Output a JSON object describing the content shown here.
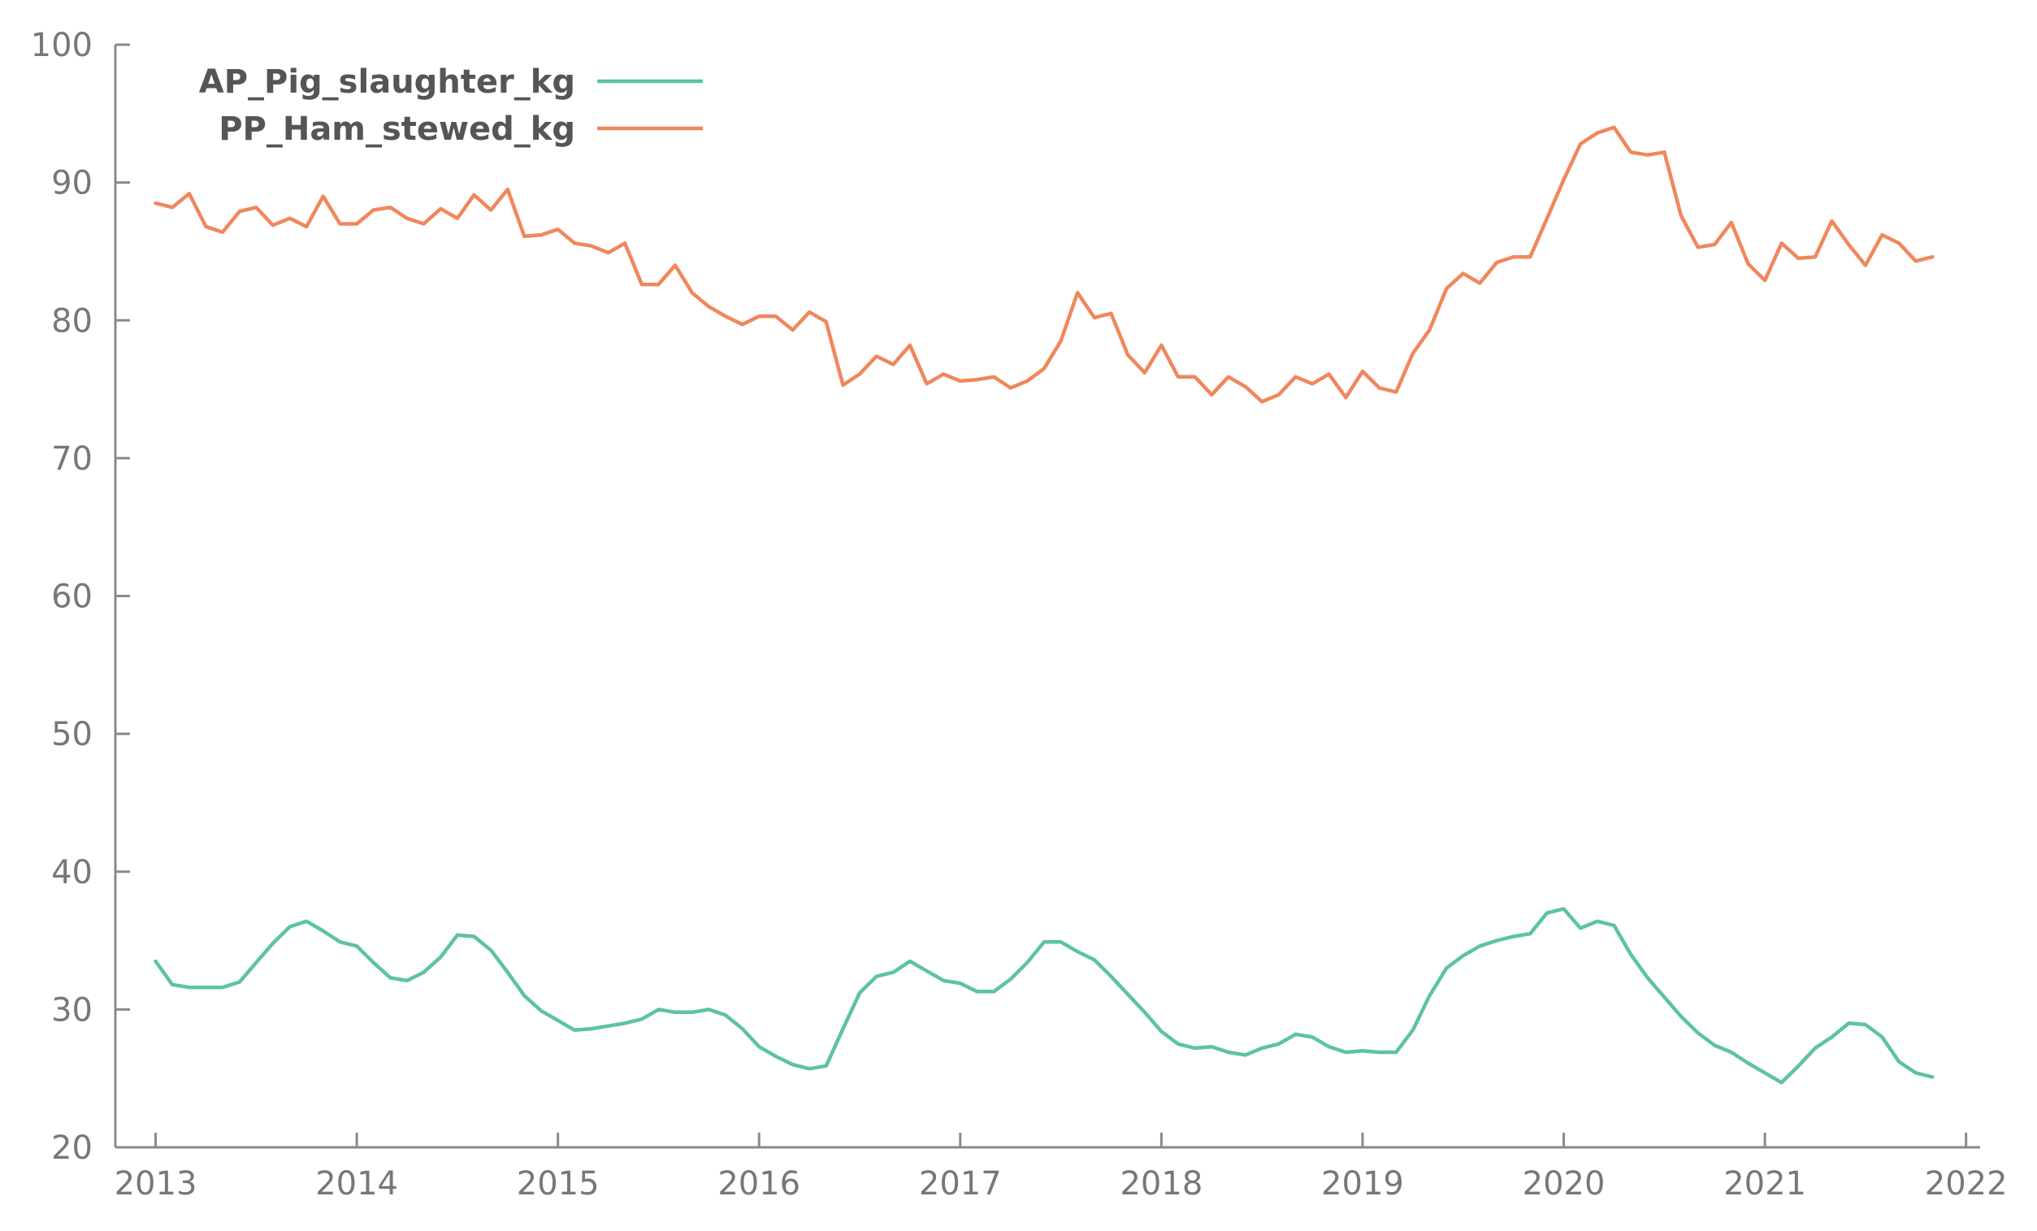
{
  "colors": {
    "background": "#ffffff",
    "axis": "#8a8a8a",
    "tick_text": "#777777",
    "legend_text": "#555555",
    "series": [
      "#5dc2a6",
      "#f0875c"
    ]
  },
  "chart_data": {
    "type": "line",
    "title": "",
    "xlabel": "",
    "ylabel": "",
    "xlim": [
      2012.8,
      2022.07
    ],
    "ylim": [
      20,
      100
    ],
    "x_ticks": [
      2013,
      2014,
      2015,
      2016,
      2017,
      2018,
      2019,
      2020,
      2021,
      2022
    ],
    "x_tick_labels": [
      "2013",
      "2014",
      "2015",
      "2016",
      "2017",
      "2018",
      "2019",
      "2020",
      "2021",
      "2022"
    ],
    "y_ticks": [
      20,
      30,
      40,
      50,
      60,
      70,
      80,
      90,
      100
    ],
    "y_tick_labels": [
      "20",
      "30",
      "40",
      "50",
      "60",
      "70",
      "80",
      "90",
      "100"
    ],
    "grid": false,
    "legend_position": "top-left",
    "series": [
      {
        "name": "AP_Pig_slaughter_kg",
        "color": "#5dc2a6",
        "x": [
          2013,
          2013.083,
          2013.167,
          2013.25,
          2013.333,
          2013.417,
          2013.5,
          2013.583,
          2013.667,
          2013.75,
          2013.833,
          2013.917,
          2014,
          2014.083,
          2014.167,
          2014.25,
          2014.333,
          2014.417,
          2014.5,
          2014.583,
          2014.667,
          2014.75,
          2014.833,
          2014.917,
          2015,
          2015.083,
          2015.167,
          2015.25,
          2015.333,
          2015.417,
          2015.5,
          2015.583,
          2015.667,
          2015.75,
          2015.833,
          2015.917,
          2016,
          2016.083,
          2016.167,
          2016.25,
          2016.333,
          2016.417,
          2016.5,
          2016.583,
          2016.667,
          2016.75,
          2016.833,
          2016.917,
          2017,
          2017.083,
          2017.167,
          2017.25,
          2017.333,
          2017.417,
          2017.5,
          2017.583,
          2017.667,
          2017.75,
          2017.833,
          2017.917,
          2018,
          2018.083,
          2018.167,
          2018.25,
          2018.333,
          2018.417,
          2018.5,
          2018.583,
          2018.667,
          2018.75,
          2018.833,
          2018.917,
          2019,
          2019.083,
          2019.167,
          2019.25,
          2019.333,
          2019.417,
          2019.5,
          2019.583,
          2019.667,
          2019.75,
          2019.833,
          2019.917,
          2020,
          2020.083,
          2020.167,
          2020.25,
          2020.333,
          2020.417,
          2020.5,
          2020.583,
          2020.667,
          2020.75,
          2020.833,
          2020.917,
          2021,
          2021.083,
          2021.167,
          2021.25,
          2021.333,
          2021.417,
          2021.5,
          2021.583,
          2021.667,
          2021.75,
          2021.833
        ],
        "values": [
          33.5,
          31.8,
          31.6,
          31.6,
          31.6,
          32.0,
          33.4,
          34.8,
          36.0,
          36.4,
          35.7,
          34.9,
          34.6,
          33.4,
          32.3,
          32.1,
          32.7,
          33.8,
          35.4,
          35.3,
          34.3,
          32.7,
          31.0,
          29.9,
          29.2,
          28.5,
          28.6,
          28.8,
          29.0,
          29.3,
          30.0,
          29.8,
          29.8,
          30.0,
          29.6,
          28.6,
          27.3,
          26.6,
          26.0,
          25.7,
          25.9,
          28.6,
          31.2,
          32.4,
          32.7,
          33.5,
          32.8,
          32.1,
          31.9,
          31.3,
          31.3,
          32.2,
          33.4,
          34.9,
          34.9,
          34.2,
          33.6,
          32.4,
          31.1,
          29.8,
          28.4,
          27.5,
          27.2,
          27.3,
          26.9,
          26.7,
          27.2,
          27.5,
          28.2,
          28.0,
          27.3,
          26.9,
          27.0,
          26.9,
          26.9,
          28.5,
          31.0,
          33.0,
          33.9,
          34.6,
          35.0,
          35.3,
          35.5,
          37.0,
          37.3,
          35.9,
          36.4,
          36.1,
          34.0,
          32.3,
          30.9,
          29.5,
          28.3,
          27.4,
          26.9,
          26.1,
          25.4,
          24.7,
          25.9,
          27.2,
          28.0,
          29.0,
          28.9,
          28.0,
          26.2,
          25.4,
          25.1
        ]
      },
      {
        "name": "PP_Ham_stewed_kg",
        "color": "#f0875c",
        "x": [
          2013,
          2013.083,
          2013.167,
          2013.25,
          2013.333,
          2013.417,
          2013.5,
          2013.583,
          2013.667,
          2013.75,
          2013.833,
          2013.917,
          2014,
          2014.083,
          2014.167,
          2014.25,
          2014.333,
          2014.417,
          2014.5,
          2014.583,
          2014.667,
          2014.75,
          2014.833,
          2014.917,
          2015,
          2015.083,
          2015.167,
          2015.25,
          2015.333,
          2015.417,
          2015.5,
          2015.583,
          2015.667,
          2015.75,
          2015.833,
          2015.917,
          2016,
          2016.083,
          2016.167,
          2016.25,
          2016.333,
          2016.417,
          2016.5,
          2016.583,
          2016.667,
          2016.75,
          2016.833,
          2016.917,
          2017,
          2017.083,
          2017.167,
          2017.25,
          2017.333,
          2017.417,
          2017.5,
          2017.583,
          2017.667,
          2017.75,
          2017.833,
          2017.917,
          2018,
          2018.083,
          2018.167,
          2018.25,
          2018.333,
          2018.417,
          2018.5,
          2018.583,
          2018.667,
          2018.75,
          2018.833,
          2018.917,
          2019,
          2019.083,
          2019.167,
          2019.25,
          2019.333,
          2019.417,
          2019.5,
          2019.583,
          2019.667,
          2019.75,
          2019.833,
          2019.917,
          2020,
          2020.083,
          2020.167,
          2020.25,
          2020.333,
          2020.417,
          2020.5,
          2020.583,
          2020.667,
          2020.75,
          2020.833,
          2020.917,
          2021,
          2021.083,
          2021.167,
          2021.25,
          2021.333,
          2021.417,
          2021.5,
          2021.583,
          2021.667,
          2021.75,
          2021.833
        ],
        "values": [
          88.5,
          88.2,
          89.2,
          86.8,
          86.4,
          87.9,
          88.2,
          86.9,
          87.4,
          86.8,
          89.0,
          87.0,
          87.0,
          88.0,
          88.2,
          87.4,
          87.0,
          88.1,
          87.4,
          89.1,
          88.0,
          89.5,
          86.1,
          86.2,
          86.6,
          85.6,
          85.4,
          84.9,
          85.6,
          82.6,
          82.6,
          84.0,
          82.0,
          81.0,
          80.3,
          79.7,
          80.3,
          80.3,
          79.3,
          80.6,
          79.9,
          75.3,
          76.1,
          77.4,
          76.8,
          78.2,
          75.4,
          76.1,
          75.6,
          75.7,
          75.9,
          75.1,
          75.6,
          76.5,
          78.5,
          82.0,
          80.2,
          80.5,
          77.5,
          76.2,
          78.2,
          75.9,
          75.9,
          74.6,
          75.9,
          75.2,
          74.1,
          74.6,
          75.9,
          75.4,
          76.1,
          74.4,
          76.3,
          75.1,
          74.8,
          77.6,
          79.3,
          82.3,
          83.4,
          82.7,
          84.2,
          84.6,
          84.6,
          87.4,
          90.2,
          92.8,
          93.6,
          94.0,
          92.2,
          92.0,
          92.2,
          87.6,
          85.3,
          85.5,
          87.1,
          84.1,
          82.9,
          85.6,
          84.5,
          84.6,
          87.2,
          85.5,
          84.0,
          86.2,
          85.6,
          84.3,
          84.6
        ]
      }
    ]
  }
}
